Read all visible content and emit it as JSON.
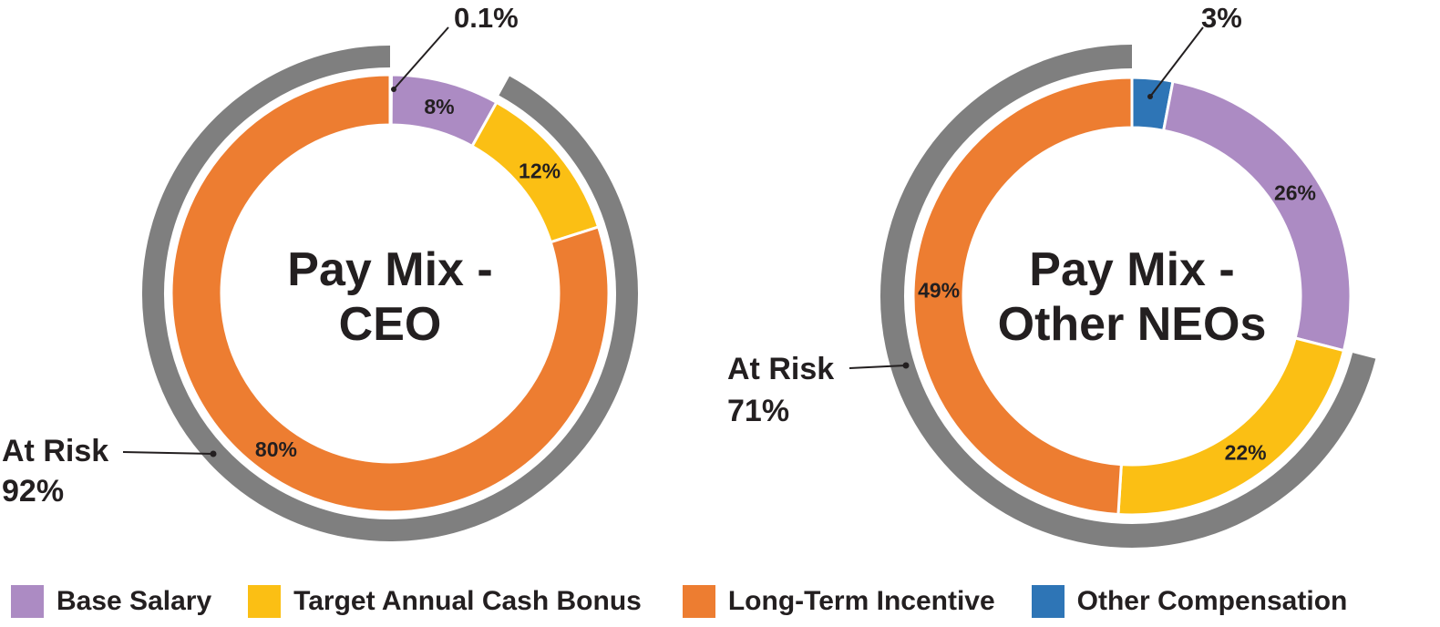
{
  "colors": {
    "base_salary": "#ac8bc3",
    "target_annual_cash_bonus": "#fbbf14",
    "long_term_incentive": "#ed7d31",
    "other_compensation": "#2e75b6",
    "at_risk": "#7f7f7f",
    "text": "#231f20"
  },
  "chart_data": [
    {
      "type": "pie",
      "variant": "donut",
      "title_lines": [
        "Pay Mix -",
        "CEO"
      ],
      "series": [
        {
          "name": "Other Compensation",
          "value": 0.1,
          "label": "0.1%",
          "color_key": "other_compensation"
        },
        {
          "name": "Base Salary",
          "value": 8,
          "label": "8%",
          "color_key": "base_salary"
        },
        {
          "name": "Target Annual Cash Bonus",
          "value": 12,
          "label": "12%",
          "color_key": "target_annual_cash_bonus"
        },
        {
          "name": "Long-Term Incentive",
          "value": 80,
          "label": "80%",
          "color_key": "long_term_incentive"
        }
      ],
      "at_risk": {
        "label": "At Risk",
        "value_label": "92%",
        "value": 92
      }
    },
    {
      "type": "pie",
      "variant": "donut",
      "title_lines": [
        "Pay Mix -",
        "Other NEOs"
      ],
      "series": [
        {
          "name": "Other Compensation",
          "value": 3,
          "label": "3%",
          "color_key": "other_compensation"
        },
        {
          "name": "Base Salary",
          "value": 26,
          "label": "26%",
          "color_key": "base_salary"
        },
        {
          "name": "Target Annual Cash Bonus",
          "value": 22,
          "label": "22%",
          "color_key": "target_annual_cash_bonus"
        },
        {
          "name": "Long-Term Incentive",
          "value": 49,
          "label": "49%",
          "color_key": "long_term_incentive"
        }
      ],
      "at_risk": {
        "label": "At Risk",
        "value_label": "71%",
        "value": 71
      }
    }
  ],
  "legend": [
    {
      "label": "Base Salary",
      "color_key": "base_salary"
    },
    {
      "label": "Target Annual Cash Bonus",
      "color_key": "target_annual_cash_bonus"
    },
    {
      "label": "Long-Term Incentive",
      "color_key": "long_term_incentive"
    },
    {
      "label": "Other Compensation",
      "color_key": "other_compensation"
    }
  ]
}
